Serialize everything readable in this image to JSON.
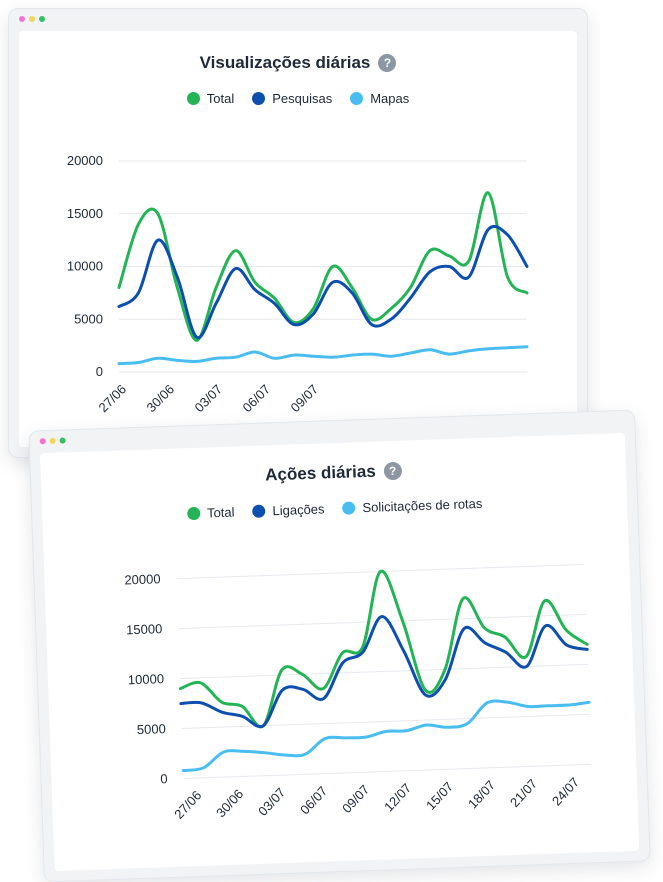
{
  "colors": {
    "total": "#22b455",
    "secondary": "#0d4fae",
    "tertiary": "#49bdf0",
    "grid": "#e6e9ee"
  },
  "help_icon_glyph": "?",
  "chart_data": [
    {
      "type": "line",
      "title": "Visualizações diárias",
      "legend_placement": "top",
      "grid": true,
      "x_ticks": [
        "27/06",
        "30/06",
        "03/07",
        "06/07",
        "09/07"
      ],
      "y_ticks": [
        "0",
        "5000",
        "10000",
        "15000",
        "20000"
      ],
      "ylim": [
        0,
        20000
      ],
      "series": [
        {
          "name": "Total",
          "color_key": "total",
          "values": [
            8000,
            14000,
            15000,
            8000,
            3000,
            8000,
            11500,
            8500,
            7000,
            4700,
            6000,
            10000,
            8000,
            5000,
            6000,
            8000,
            11500,
            11000,
            10500,
            17000,
            9000,
            7500
          ]
        },
        {
          "name": "Pesquisas",
          "color_key": "secondary",
          "values": [
            6200,
            7500,
            12500,
            9000,
            3300,
            6500,
            9800,
            7800,
            6500,
            4500,
            5500,
            8500,
            7500,
            4500,
            5000,
            7000,
            9500,
            10000,
            9000,
            13500,
            13000,
            10000
          ]
        },
        {
          "name": "Mapas",
          "color_key": "tertiary",
          "values": [
            800,
            900,
            1300,
            1100,
            1000,
            1300,
            1400,
            1900,
            1300,
            1600,
            1500,
            1400,
            1600,
            1700,
            1500,
            1800,
            2100,
            1700,
            2000,
            2200,
            2300,
            2400
          ]
        }
      ]
    },
    {
      "type": "line",
      "title": "Ações diárias",
      "legend_placement": "top",
      "grid": true,
      "x_ticks": [
        "27/06",
        "30/06",
        "03/07",
        "06/07",
        "09/07",
        "12/07",
        "15/07",
        "18/07",
        "21/07",
        "24/07"
      ],
      "y_ticks": [
        "0",
        "5000",
        "10000",
        "15000",
        "20000"
      ],
      "ylim": [
        0,
        20000
      ],
      "series": [
        {
          "name": "Total",
          "color_key": "total",
          "values": [
            9000,
            9500,
            7500,
            7000,
            5000,
            10500,
            10000,
            8500,
            12000,
            12500,
            20000,
            15000,
            8000,
            10000,
            17000,
            14000,
            13000,
            11000,
            16500,
            13500,
            12000
          ]
        },
        {
          "name": "Ligações",
          "color_key": "secondary",
          "values": [
            7500,
            7500,
            6500,
            6000,
            5000,
            8500,
            8500,
            7500,
            11000,
            12000,
            15500,
            12000,
            7500,
            9000,
            14000,
            12500,
            11500,
            10000,
            14000,
            12000,
            11500
          ]
        },
        {
          "name": "Solicitações de rotas",
          "color_key": "tertiary",
          "values": [
            800,
            1000,
            2500,
            2500,
            2300,
            2000,
            2000,
            3500,
            3500,
            3500,
            4000,
            4000,
            4500,
            4200,
            4500,
            6500,
            6500,
            6000,
            6000,
            6000,
            6200
          ]
        }
      ]
    }
  ]
}
